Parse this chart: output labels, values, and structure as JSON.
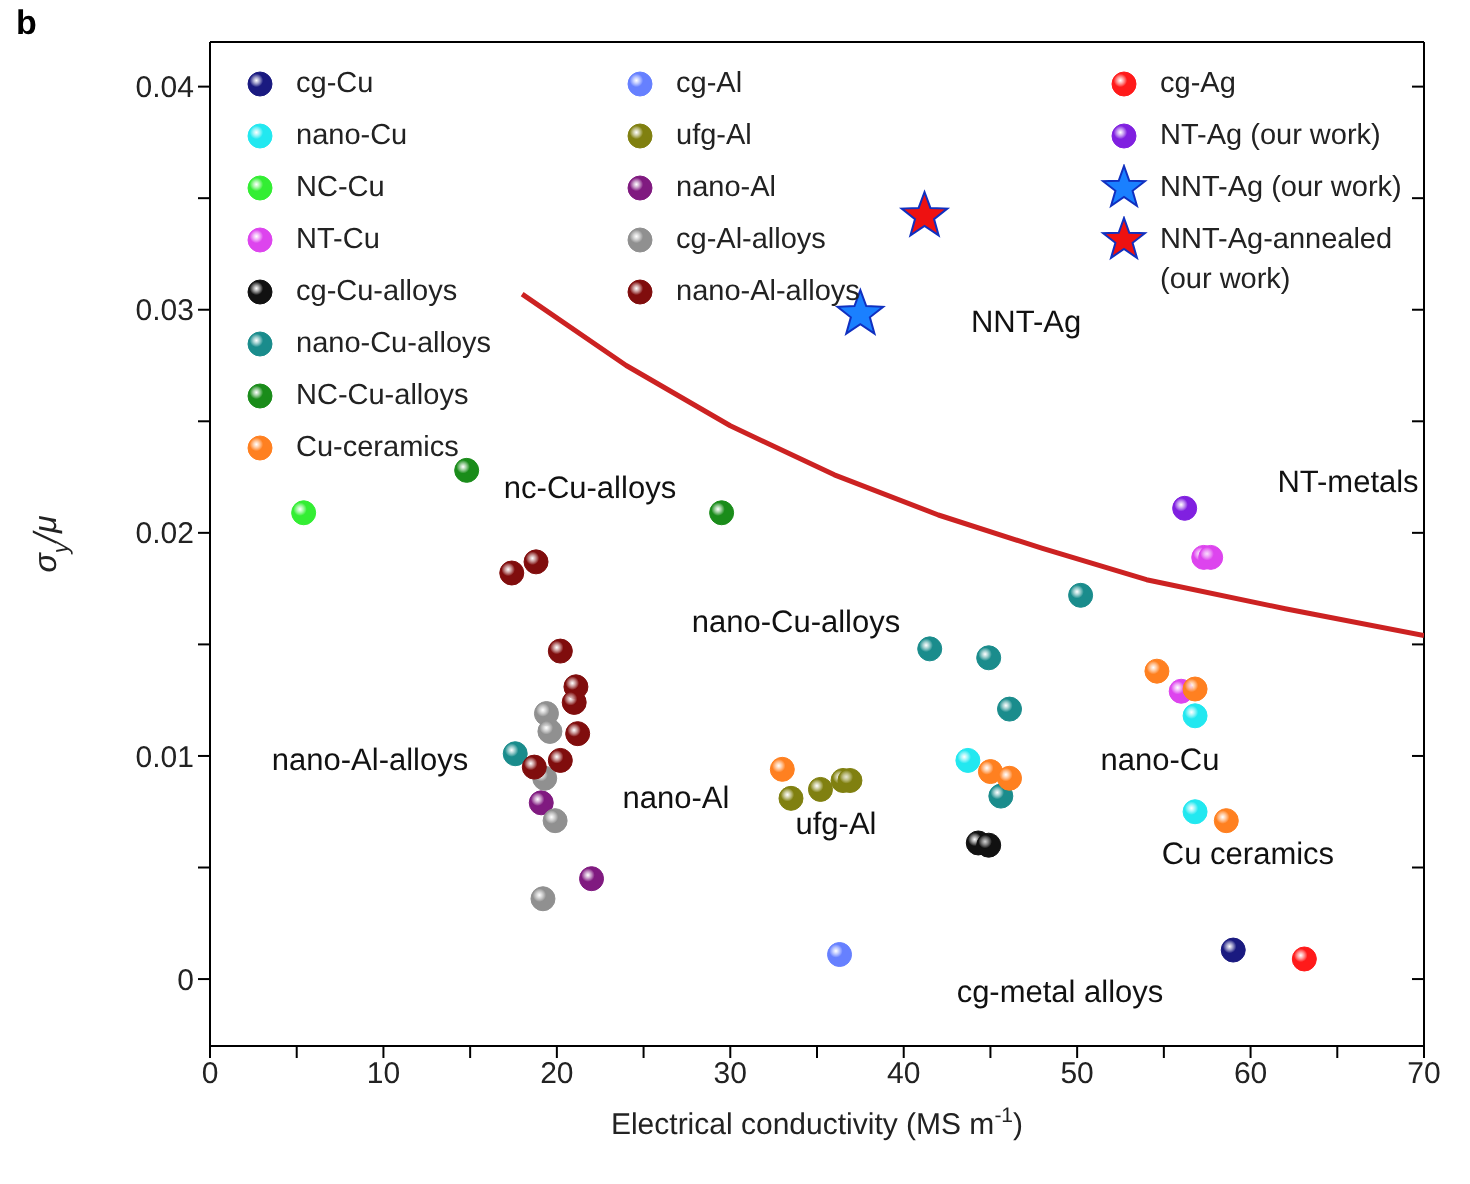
{
  "chart_data": {
    "type": "scatter",
    "title": "b",
    "xlabel": "Electrical conductivity (MS m$^{-1}$)",
    "ylabel": "σ$_{y}$/μ",
    "xlim": [
      0,
      70
    ],
    "ylim": [
      -0.003,
      0.042
    ],
    "xticks": [
      0,
      {
        "value": 5,
        "label": null
      },
      10,
      {
        "value": 15,
        "label": null
      },
      20,
      {
        "value": 25,
        "label": null
      },
      30,
      {
        "value": 35,
        "label": null
      },
      40,
      {
        "value": 45,
        "label": null
      },
      50,
      {
        "value": 55,
        "label": null
      },
      60,
      {
        "value": 65,
        "label": null
      },
      70
    ],
    "yticks": [
      0,
      {
        "value": 0.005,
        "label": null
      },
      0.01,
      {
        "value": 0.015,
        "label": null
      },
      0.02,
      {
        "value": 0.025,
        "label": null
      },
      0.03,
      {
        "value": 0.035,
        "label": null
      },
      0.04
    ],
    "grid": false,
    "legend": "top",
    "marker": "circle",
    "series": [
      {
        "name": "cg-Cu",
        "color": "#1a1a80",
        "x": [
          59.0
        ],
        "values": [
          0.0013
        ]
      },
      {
        "name": "nano-Cu",
        "color": "#22e8f0",
        "x": [
          43.7,
          56.8,
          56.8
        ],
        "values": [
          0.0098,
          0.0118,
          0.0075
        ]
      },
      {
        "name": "NC-Cu",
        "color": "#33ee33",
        "x": [
          5.4
        ],
        "values": [
          0.0209
        ]
      },
      {
        "name": "NT-Cu",
        "color": "#dd44ee",
        "x": [
          57.3,
          57.7,
          56.0
        ],
        "values": [
          0.0189,
          0.0189,
          0.0129
        ]
      },
      {
        "name": "cg-Cu-alloys",
        "color": "#111111",
        "x": [
          44.3,
          44.9
        ],
        "values": [
          0.0061,
          0.006
        ]
      },
      {
        "name": "nano-Cu-alloys",
        "color": "#1a8c8c",
        "x": [
          41.5,
          44.9,
          50.2,
          46.1,
          45.6,
          17.6
        ],
        "values": [
          0.0148,
          0.0144,
          0.0172,
          0.0121,
          0.0082,
          0.0101
        ]
      },
      {
        "name": "NC-Cu-alloys",
        "color": "#1a8c1a",
        "x": [
          14.8,
          29.5
        ],
        "values": [
          0.0228,
          0.0209
        ]
      },
      {
        "name": "Cu-ceramics",
        "color": "#ff8020",
        "x": [
          33.0,
          54.6,
          56.8,
          45.0,
          46.1,
          58.6
        ],
        "values": [
          0.0094,
          0.0138,
          0.013,
          0.0093,
          0.009,
          0.0071
        ]
      },
      {
        "name": "cg-Al",
        "color": "#6680ff",
        "x": [
          36.3
        ],
        "values": [
          0.0011
        ]
      },
      {
        "name": "ufg-Al",
        "color": "#808010",
        "x": [
          33.5,
          35.2,
          36.5,
          36.9
        ],
        "values": [
          0.0081,
          0.0085,
          0.0089,
          0.0089
        ]
      },
      {
        "name": "nano-Al",
        "color": "#801a80",
        "x": [
          19.1,
          22.0
        ],
        "values": [
          0.0079,
          0.0045
        ]
      },
      {
        "name": "cg-Al-alloys",
        "color": "#909090",
        "x": [
          19.4,
          19.6,
          19.3,
          19.9,
          19.2
        ],
        "values": [
          0.0119,
          0.0111,
          0.009,
          0.0071,
          0.0036
        ]
      },
      {
        "name": "nano-Al-alloys",
        "color": "#800d0d",
        "x": [
          17.4,
          18.8,
          20.2,
          21.1,
          21.0,
          21.2,
          20.2,
          18.7
        ],
        "values": [
          0.0182,
          0.0187,
          0.0147,
          0.0131,
          0.0124,
          0.011,
          0.0098,
          0.0095
        ]
      },
      {
        "name": "cg-Ag",
        "color": "#ff1a1a",
        "x": [
          63.1
        ],
        "values": [
          0.0009
        ]
      },
      {
        "name": "NT-Ag (our work)",
        "color": "#8020e0",
        "x": [
          56.2
        ],
        "values": [
          0.0211
        ]
      },
      {
        "name": "NNT-Ag (our work)",
        "color": "#1a80ff",
        "marker": "star",
        "x": [
          37.5
        ],
        "values": [
          0.0298
        ]
      },
      {
        "name": "NNT-Ag-annealed (our work)",
        "color": "#ee1111",
        "marker": "star",
        "x": [
          41.2
        ],
        "values": [
          0.0342
        ]
      },
      {
        "type": "line",
        "color": "#cc2222",
        "marker": "none",
        "x": [
          18,
          24,
          30,
          36,
          42,
          48,
          54,
          62,
          70
        ],
        "values": [
          0.0307,
          0.0275,
          0.0248,
          0.0226,
          0.0208,
          0.0193,
          0.0179,
          0.0166,
          0.0154
        ]
      }
    ],
    "annotations": [
      "NNT-Ag",
      "NT-metals",
      "nc-Cu-alloys",
      "nano-Cu-alloys",
      "nano-Al-alloys",
      "nano-Al",
      "ufg-Al",
      "nano-Cu",
      "Cu ceramics",
      "cg-metal alloys"
    ]
  }
}
